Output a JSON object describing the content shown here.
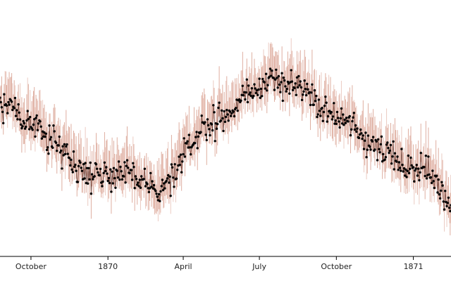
{
  "chart_data": {
    "type": "line",
    "title": "",
    "xlabel": "",
    "ylabel": "",
    "x_range": [
      "1869-08-25",
      "1871-02-15"
    ],
    "x_ticks": [
      {
        "date": "1869-10-01",
        "label": "October"
      },
      {
        "date": "1870-01-01",
        "label": "1870"
      },
      {
        "date": "1870-04-01",
        "label": "April"
      },
      {
        "date": "1870-07-01",
        "label": "July"
      },
      {
        "date": "1870-10-01",
        "label": "October"
      },
      {
        "date": "1871-01-01",
        "label": "1871"
      }
    ],
    "y_axis_visible": false,
    "grid": false,
    "series": [
      {
        "style": "daily points with vertical error bars",
        "point_color": "#000000",
        "line_color": "#5a2a20",
        "error_bar_color": "#d9a090",
        "band_color": "#e8c2b8",
        "sampling": "daily",
        "control_points": [
          {
            "date": "1869-08-25",
            "value": 0.6,
            "spread": 0.3
          },
          {
            "date": "1869-09-05",
            "value": 0.6,
            "spread": 0.3
          },
          {
            "date": "1869-09-25",
            "value": 0.52,
            "spread": 0.3
          },
          {
            "date": "1869-10-20",
            "value": 0.47,
            "spread": 0.3
          },
          {
            "date": "1869-11-10",
            "value": 0.4,
            "spread": 0.3
          },
          {
            "date": "1869-12-01",
            "value": 0.31,
            "spread": 0.3
          },
          {
            "date": "1869-12-25",
            "value": 0.3,
            "spread": 0.3
          },
          {
            "date": "1870-01-20",
            "value": 0.3,
            "spread": 0.3
          },
          {
            "date": "1870-02-10",
            "value": 0.27,
            "spread": 0.3
          },
          {
            "date": "1870-03-01",
            "value": 0.22,
            "spread": 0.3
          },
          {
            "date": "1870-03-20",
            "value": 0.28,
            "spread": 0.3
          },
          {
            "date": "1870-04-10",
            "value": 0.44,
            "spread": 0.3
          },
          {
            "date": "1870-05-01",
            "value": 0.52,
            "spread": 0.3
          },
          {
            "date": "1870-05-25",
            "value": 0.56,
            "spread": 0.3
          },
          {
            "date": "1870-06-20",
            "value": 0.66,
            "spread": 0.3
          },
          {
            "date": "1870-07-10",
            "value": 0.7,
            "spread": 0.3
          },
          {
            "date": "1870-08-01",
            "value": 0.7,
            "spread": 0.3
          },
          {
            "date": "1870-08-25",
            "value": 0.66,
            "spread": 0.3
          },
          {
            "date": "1870-09-20",
            "value": 0.57,
            "spread": 0.3
          },
          {
            "date": "1870-10-15",
            "value": 0.52,
            "spread": 0.3
          },
          {
            "date": "1870-11-10",
            "value": 0.44,
            "spread": 0.3
          },
          {
            "date": "1870-12-01",
            "value": 0.4,
            "spread": 0.3
          },
          {
            "date": "1870-12-20",
            "value": 0.33,
            "spread": 0.3
          },
          {
            "date": "1871-01-10",
            "value": 0.33,
            "spread": 0.3
          },
          {
            "date": "1871-02-01",
            "value": 0.26,
            "spread": 0.3
          },
          {
            "date": "1871-02-15",
            "value": 0.15,
            "spread": 0.3
          }
        ]
      }
    ]
  }
}
